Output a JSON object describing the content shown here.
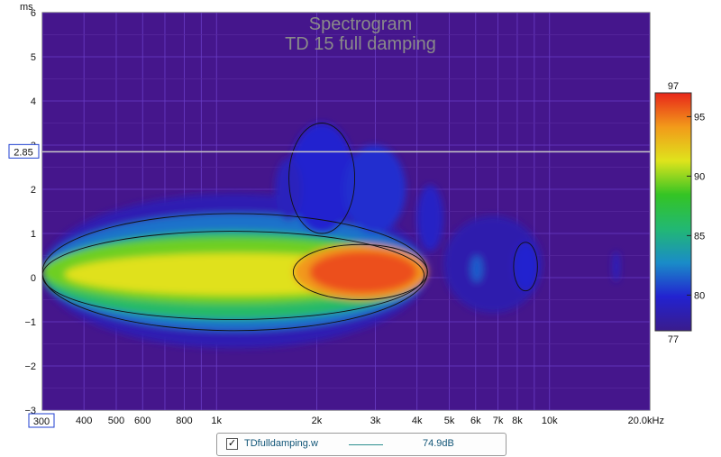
{
  "chart_data": {
    "type": "heatmap",
    "title": "Spectrogram",
    "subtitle": "TD 15 full damping",
    "y_unit": "ms",
    "x_unit_label": "20.0kHz",
    "xlim": [
      300,
      20000
    ],
    "ylim": [
      -3,
      6
    ],
    "x_scale": "log",
    "x_tick_labels": [
      "400",
      "500",
      "600",
      "800",
      "1k",
      "2k",
      "3k",
      "4k",
      "5k",
      "6k",
      "7k",
      "8k",
      "10k"
    ],
    "x_ticks": [
      400,
      500,
      600,
      800,
      1000,
      2000,
      3000,
      4000,
      5000,
      6000,
      7000,
      8000,
      10000
    ],
    "x_min_label": "300",
    "y_ticks": [
      -2,
      -1,
      0,
      1,
      2,
      3,
      4,
      5
    ],
    "y_min_label": "−3",
    "y_max_label": "6",
    "cursor_value": 2.85,
    "cursor_label": "2.85",
    "colorbar": {
      "min": 77,
      "max": 97,
      "min_label": "77",
      "max_label": "97",
      "tick_labels": [
        "95",
        "90",
        "85",
        "80"
      ],
      "ticks": [
        95,
        90,
        85,
        80
      ],
      "colors": [
        "#3a1c8c",
        "#2222d0",
        "#1a8cc8",
        "#22b873",
        "#34c424",
        "#dfe41c",
        "#f29a1a",
        "#e8261a"
      ]
    },
    "background_color": "#45168c",
    "grid": true,
    "blobs": [
      {
        "x1": 300,
        "x2": 4300,
        "y1": -1.6,
        "y2": 1.9,
        "level": 0.08
      },
      {
        "x1": 300,
        "x2": 4300,
        "y1": -1.2,
        "y2": 1.45,
        "level": 0.25
      },
      {
        "x1": 300,
        "x2": 4200,
        "y1": -0.95,
        "y2": 1.05,
        "level": 0.45
      },
      {
        "x1": 300,
        "x2": 4000,
        "y1": -0.6,
        "y2": 0.9,
        "level": 0.62
      },
      {
        "x1": 350,
        "x2": 3800,
        "y1": -0.4,
        "y2": 0.55,
        "level": 0.72
      },
      {
        "x1": 1700,
        "x2": 4300,
        "y1": -0.5,
        "y2": 0.75,
        "level": 0.86
      },
      {
        "x1": 1900,
        "x2": 4000,
        "y1": -0.35,
        "y2": 0.6,
        "level": 0.95
      },
      {
        "x1": 1650,
        "x2": 2600,
        "y1": 1.0,
        "y2": 3.5,
        "level": 0.14
      },
      {
        "x1": 2400,
        "x2": 3700,
        "y1": 1.0,
        "y2": 3.0,
        "level": 0.16
      },
      {
        "x1": 1500,
        "x2": 1800,
        "y1": 1.3,
        "y2": 2.7,
        "level": 0.1
      },
      {
        "x1": 4000,
        "x2": 4800,
        "y1": 0.6,
        "y2": 2.1,
        "level": 0.12
      },
      {
        "x1": 4800,
        "x2": 9500,
        "y1": -0.8,
        "y2": 1.4,
        "level": 0.07
      },
      {
        "x1": 5800,
        "x2": 6300,
        "y1": -0.1,
        "y2": 0.5,
        "level": 0.22
      },
      {
        "x1": 7800,
        "x2": 9200,
        "y1": -0.3,
        "y2": 0.8,
        "level": 0.14
      },
      {
        "x1": 15500,
        "x2": 16200,
        "y1": -0.1,
        "y2": 0.6,
        "level": 0.12
      }
    ],
    "legend": {
      "checked": true,
      "check_mark": "✓",
      "series_name": "TDfulldamping.w",
      "value_label": "74.9dB",
      "line_color": "#2a8f8f"
    }
  }
}
